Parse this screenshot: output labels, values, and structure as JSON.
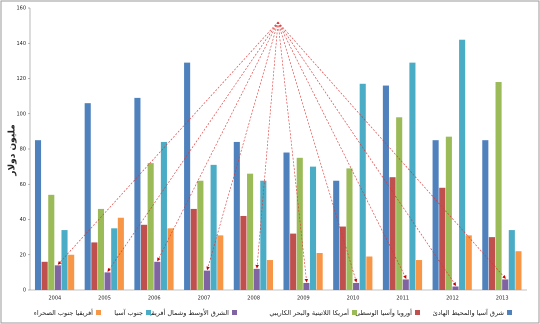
{
  "chart_data": {
    "type": "bar",
    "y_label": "مليون دولار",
    "categories": [
      "2004",
      "2005",
      "2006",
      "2007",
      "2008",
      "2009",
      "2010",
      "2011",
      "2012",
      "2013"
    ],
    "series": [
      {
        "name": "شرق آسيا والمحيط الهادئ",
        "color": "#4f81bd",
        "values": [
          85,
          106,
          109,
          129,
          84,
          78,
          62,
          116,
          85,
          85
        ]
      },
      {
        "name": "أوروبا وآسيا الوسطى",
        "color": "#c0504d",
        "values": [
          16,
          27,
          37,
          46,
          42,
          32,
          36,
          64,
          58,
          30
        ]
      },
      {
        "name": "أمريكا اللاتينية والبحر الكاريبي",
        "color": "#9bbb59",
        "values": [
          54,
          46,
          72,
          62,
          66,
          75,
          69,
          98,
          87,
          118
        ]
      },
      {
        "name": "الشرق الأوسط وشمال أفريقيا",
        "color": "#8064a2",
        "values": [
          14,
          10,
          16,
          11,
          12,
          4,
          4,
          6,
          2,
          6
        ]
      },
      {
        "name": "جنوب آسيا",
        "color": "#4bacc6",
        "values": [
          34,
          35,
          84,
          71,
          62,
          70,
          117,
          129,
          142,
          34
        ]
      },
      {
        "name": "أفريقيا جنوب الصحراء",
        "color": "#f79646",
        "values": [
          20,
          41,
          35,
          31,
          17,
          21,
          19,
          17,
          31,
          22
        ]
      }
    ],
    "ylim": [
      0,
      160
    ],
    "yticks": [
      0,
      20,
      40,
      60,
      80,
      100,
      120,
      140,
      160
    ],
    "grid": false
  }
}
